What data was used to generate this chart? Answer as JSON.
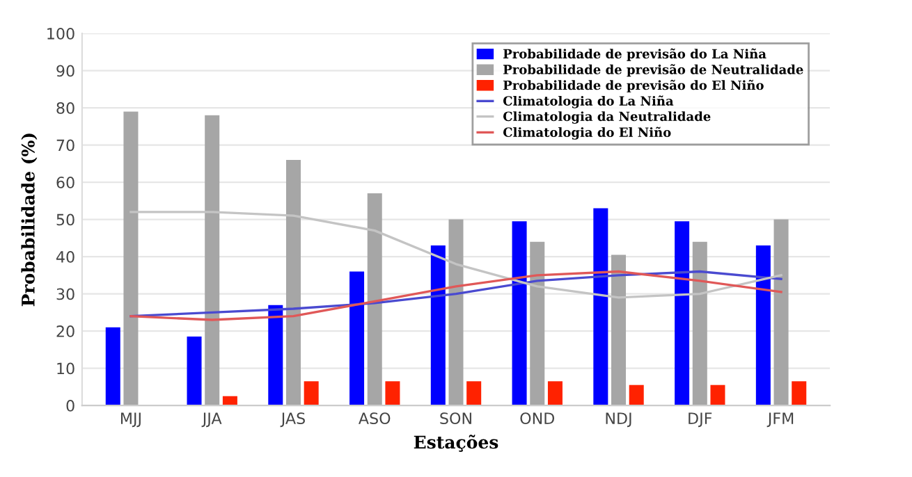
{
  "chart_data": {
    "type": "bar",
    "xlabel": "Estações",
    "ylabel": "Probabilidade (%)",
    "categories": [
      "MJJ",
      "JJA",
      "JAS",
      "ASO",
      "SON",
      "OND",
      "NDJ",
      "DJF",
      "JFM"
    ],
    "series": [
      {
        "name": "Probabilidade de previsão do La Niña",
        "color": "#0000ff",
        "values": [
          21,
          18.5,
          27,
          36,
          43,
          49.5,
          53,
          49.5,
          43
        ]
      },
      {
        "name": "Probabilidade de previsão de Neutralidade",
        "color": "#a6a6a6",
        "values": [
          79,
          78,
          66,
          57,
          50,
          44,
          40.5,
          44,
          50
        ]
      },
      {
        "name": "Probabilidade de previsão do El Niño",
        "color": "#ff2200",
        "values": [
          0,
          2.5,
          6.5,
          6.5,
          6.5,
          6.5,
          5.5,
          5.5,
          6.5
        ]
      },
      {
        "name": "Climatologia do La Niña",
        "type": "line",
        "color": "#4a4ad0",
        "values": [
          24,
          25,
          26,
          27.5,
          30,
          33.5,
          35,
          36,
          34
        ]
      },
      {
        "name": "Climatologia da Neutralidade",
        "type": "line",
        "color": "#c4c4c4",
        "values": [
          52,
          52,
          51,
          47,
          38,
          32,
          29,
          30,
          35
        ]
      },
      {
        "name": "Climatologia do El Niño",
        "type": "line",
        "color": "#e05858",
        "values": [
          24,
          23,
          24,
          28,
          32,
          35,
          36,
          33.5,
          30.5
        ]
      }
    ],
    "ylim": [
      0,
      100
    ],
    "yticks": [
      0,
      10,
      20,
      30,
      40,
      50,
      60,
      70,
      80,
      90,
      100
    ],
    "grid": "y",
    "legend": "top right",
    "marker": "none",
    "line_style": "solid"
  }
}
